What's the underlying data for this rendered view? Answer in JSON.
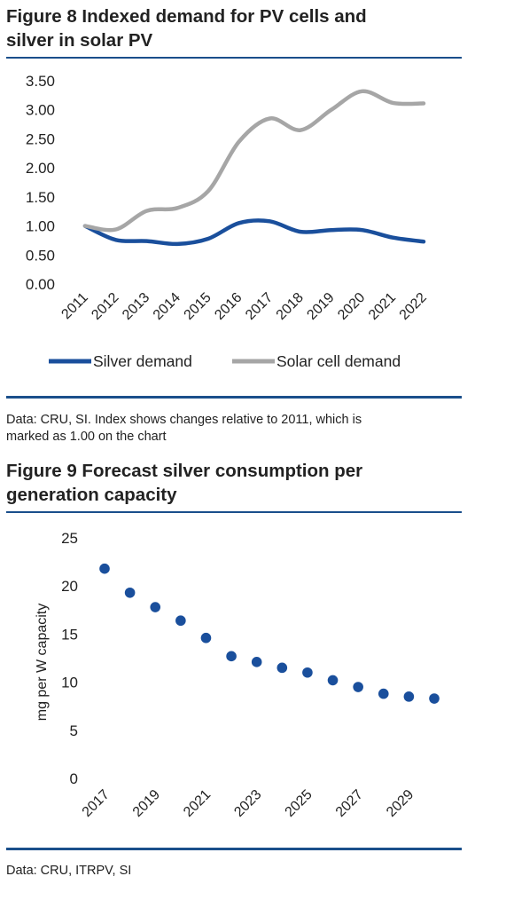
{
  "figure8": {
    "title": "Figure 8  Indexed demand for PV cells and\nsilver in solar PV",
    "source": "Data: CRU, SI. Index shows changes relative to 2011, which is\nmarked as 1.00 on the chart"
  },
  "figure9": {
    "title": "Figure 9  Forecast silver consumption per\ngeneration capacity",
    "source": "Data: CRU, ITRPV, SI"
  },
  "chart_data": [
    {
      "type": "line",
      "title": "Figure 8  Indexed demand for PV cells and silver in solar PV",
      "x": [
        "2011",
        "2012",
        "2013",
        "2014",
        "2015",
        "2016",
        "2017",
        "2018",
        "2019",
        "2020",
        "2021",
        "2022"
      ],
      "ylim": [
        0,
        3.5
      ],
      "yticks": [
        "0.00",
        "0.50",
        "1.00",
        "1.50",
        "2.00",
        "2.50",
        "3.00",
        "3.50"
      ],
      "grid": false,
      "legend": "bottom",
      "series": [
        {
          "name": "Silver demand",
          "color": "#1a4f9c",
          "values": [
            1.0,
            0.76,
            0.74,
            0.69,
            0.78,
            1.05,
            1.08,
            0.9,
            0.93,
            0.93,
            0.8,
            0.73
          ]
        },
        {
          "name": "Solar cell demand",
          "color": "#a6a6a6",
          "values": [
            1.0,
            0.94,
            1.26,
            1.31,
            1.6,
            2.45,
            2.85,
            2.65,
            3.0,
            3.32,
            3.12,
            3.11
          ]
        }
      ]
    },
    {
      "type": "scatter",
      "title": "Figure 9  Forecast silver consumption per generation capacity",
      "ylabel": "mg per W capacity",
      "x": [
        2017,
        2018,
        2019,
        2020,
        2021,
        2022,
        2023,
        2024,
        2025,
        2026,
        2027,
        2028,
        2029,
        2030
      ],
      "xticks": [
        "2017",
        "2019",
        "2021",
        "2023",
        "2025",
        "2027",
        "2029"
      ],
      "ylim": [
        0,
        25
      ],
      "yticks": [
        "0",
        "5",
        "10",
        "15",
        "20",
        "25"
      ],
      "grid": false,
      "color": "#1a4f9c",
      "values": [
        21.8,
        19.3,
        17.8,
        16.4,
        14.6,
        12.7,
        12.1,
        11.5,
        11.0,
        10.2,
        9.5,
        8.8,
        8.5,
        8.3
      ]
    }
  ]
}
